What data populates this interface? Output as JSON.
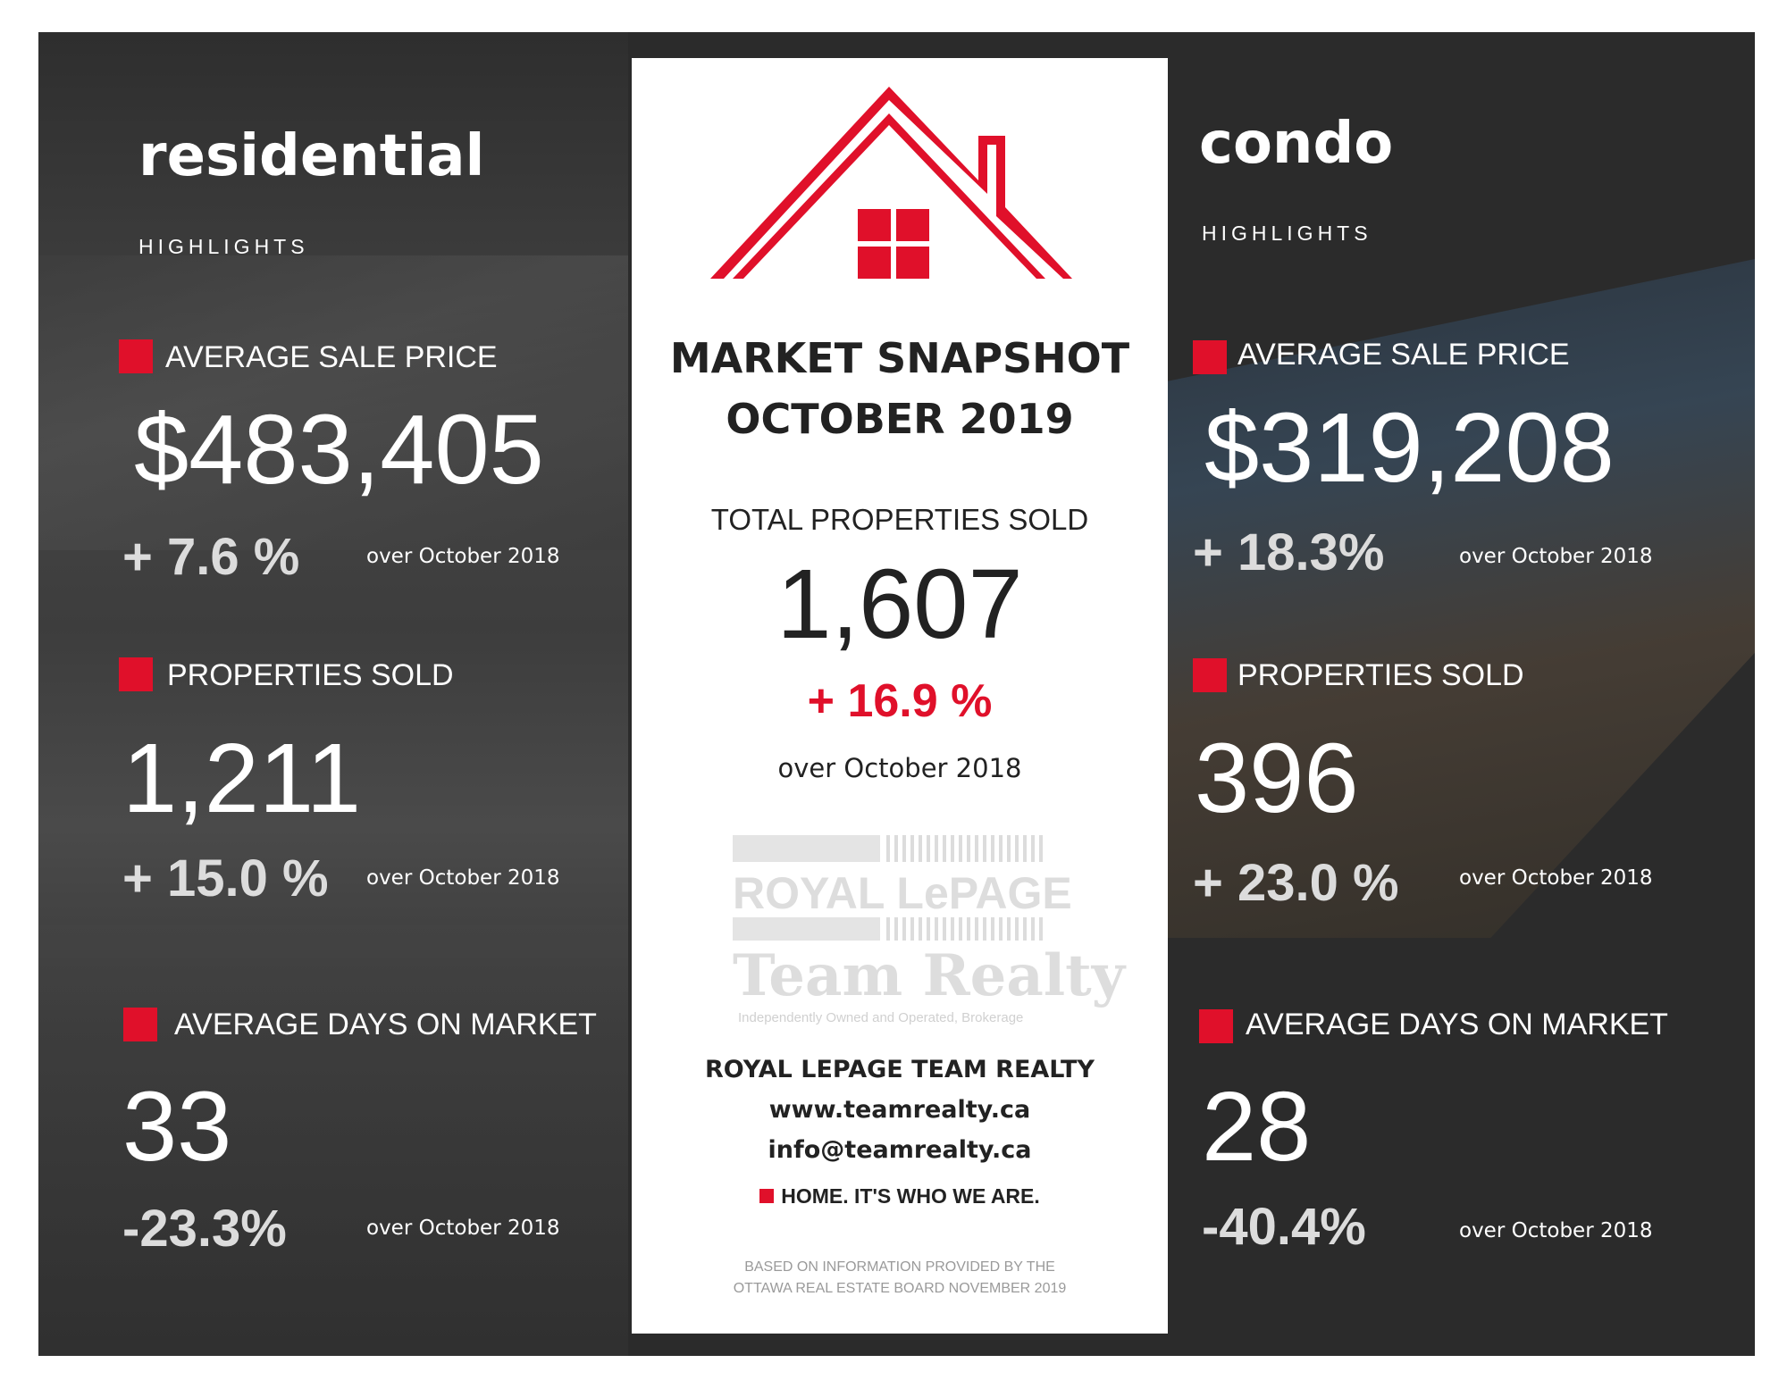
{
  "colors": {
    "accent": "#e0102a",
    "dark": "#2b2b2b",
    "panel": "#ffffff"
  },
  "residential": {
    "title": "residential",
    "subtitle": "HIGHLIGHTS",
    "avg_price_label": "AVERAGE SALE PRICE",
    "avg_price_value": "$483,405",
    "avg_price_change": "+ 7.6 %",
    "avg_price_over": "over October 2018",
    "sold_label": "PROPERTIES SOLD",
    "sold_value": "1,211",
    "sold_change": "+ 15.0 %",
    "sold_over": "over October 2018",
    "dom_label": "AVERAGE DAYS ON MARKET",
    "dom_value": "33",
    "dom_change": "-23.3%",
    "dom_over": "over October 2018"
  },
  "condo": {
    "title": "condo",
    "subtitle": "HIGHLIGHTS",
    "avg_price_label": "AVERAGE SALE PRICE",
    "avg_price_value": "$319,208",
    "avg_price_change": "+ 18.3%",
    "avg_price_over": "over October 2018",
    "sold_label": "PROPERTIES SOLD",
    "sold_value": "396",
    "sold_change": "+ 23.0 %",
    "sold_over": "over October 2018",
    "dom_label": "AVERAGE DAYS ON MARKET",
    "dom_value": "28",
    "dom_change": "-40.4%",
    "dom_over": "over October 2018"
  },
  "center": {
    "icon": "house-roof-icon",
    "title_line1": "MARKET SNAPSHOT",
    "title_line2": "OCTOBER 2019",
    "total_label": "TOTAL PROPERTIES SOLD",
    "total_value": "1,607",
    "total_change": "+ 16.9 %",
    "total_over": "over October 2018",
    "logo_line1": "ROYAL LePAGE",
    "logo_line2": "Team Realty",
    "logo_line3": "Independently Owned and Operated, Brokerage",
    "company": "ROYAL LEPAGE TEAM REALTY",
    "website": "www.teamrealty.ca",
    "email": "info@teamrealty.ca",
    "slogan": "HOME. IT'S WHO WE ARE.",
    "note_line1": "BASED ON INFORMATION PROVIDED BY THE",
    "note_line2": "OTTAWA REAL ESTATE BOARD NOVEMBER 2019"
  }
}
